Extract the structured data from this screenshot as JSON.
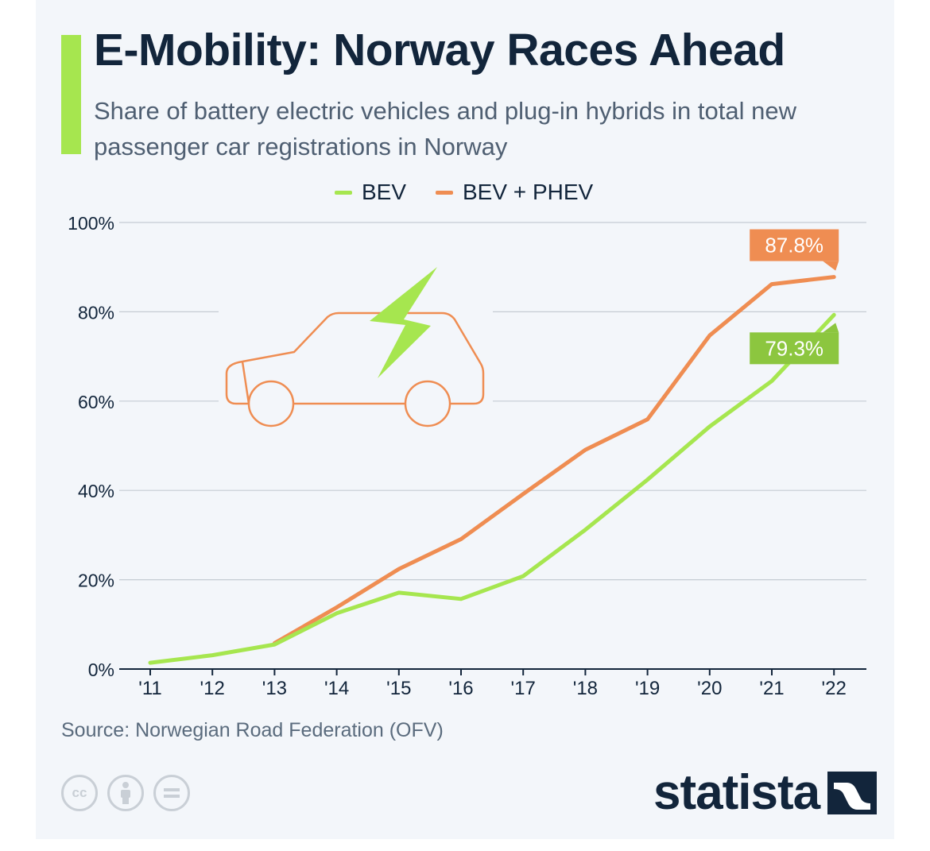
{
  "header": {
    "title": "E-Mobility: Norway Races Ahead",
    "subtitle": "Share of battery electric vehicles and plug-in hybrids in total new passenger car registrations in Norway"
  },
  "legend": {
    "items": [
      {
        "label": "BEV",
        "color": "#a6e64f"
      },
      {
        "label": "BEV + PHEV",
        "color": "#ef8d52"
      }
    ]
  },
  "chart_data": {
    "type": "line",
    "x": [
      "'11",
      "'12",
      "'13",
      "'14",
      "'15",
      "'16",
      "'17",
      "'18",
      "'19",
      "'20",
      "'21",
      "'22"
    ],
    "series": [
      {
        "name": "BEV",
        "color": "#a6e64f",
        "values": [
          1.4,
          3.1,
          5.5,
          12.5,
          17.1,
          15.7,
          20.8,
          31.2,
          42.4,
          54.3,
          64.5,
          79.3
        ]
      },
      {
        "name": "BEV + PHEV",
        "color": "#ef8d52",
        "values": [
          null,
          null,
          5.8,
          13.8,
          22.4,
          29.1,
          39.2,
          49.1,
          55.9,
          74.7,
          86.2,
          87.8
        ]
      }
    ],
    "y_ticks": [
      "0%",
      "20%",
      "40%",
      "60%",
      "80%",
      "100%"
    ],
    "ylim": [
      0,
      100
    ],
    "grid": true,
    "annotations": [
      {
        "label": "87.8%",
        "series": "BEV + PHEV",
        "x": "'22",
        "color": "#ef8d52"
      },
      {
        "label": "79.3%",
        "series": "BEV",
        "x": "'22",
        "color": "#8cc63f"
      }
    ]
  },
  "decor": {
    "illustration": "electric-car-icon",
    "car_color": "#ef8d52",
    "bolt_color": "#a6e64f"
  },
  "footer": {
    "source": "Source: Norwegian Road Federation (OFV)",
    "license_icons": [
      "cc-icon",
      "attribution-icon",
      "no-derivatives-icon"
    ],
    "brand": "statista"
  }
}
